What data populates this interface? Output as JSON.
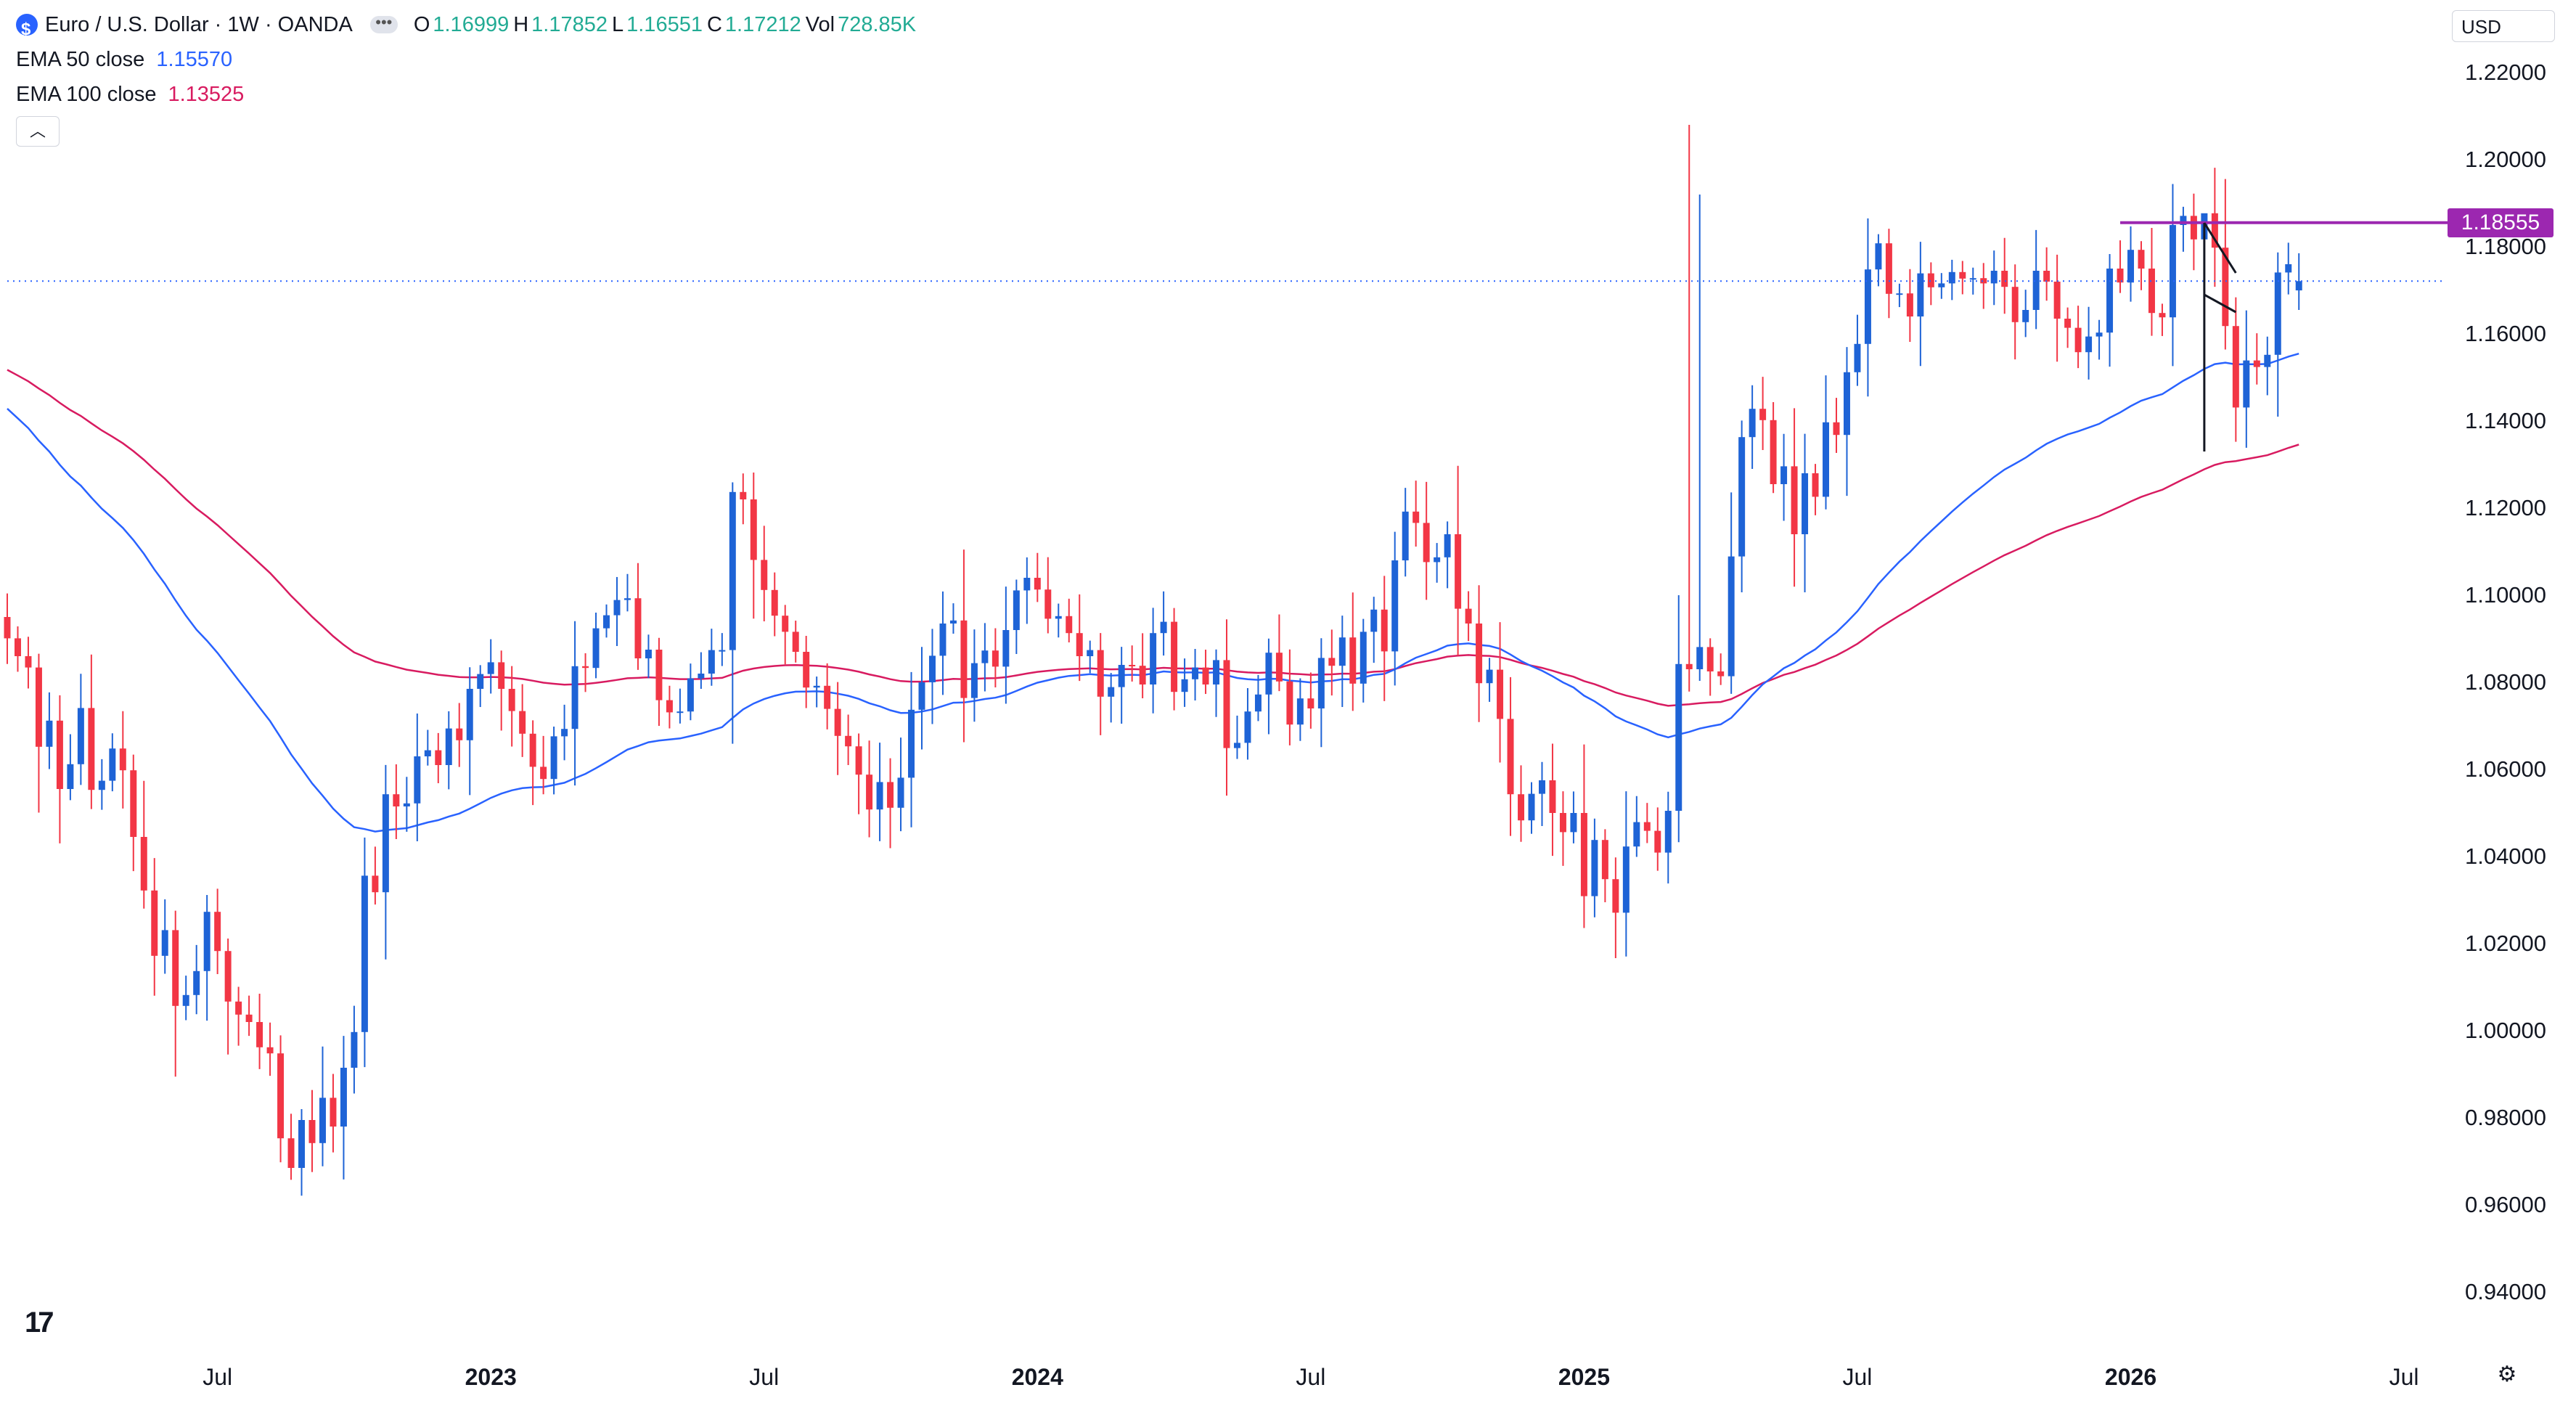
{
  "header": {
    "symbol_title": "Euro / U.S. Dollar · 1W · OANDA",
    "open_key": "O",
    "open_val": "1.16999",
    "high_key": "H",
    "high_val": "1.17852",
    "low_key": "L",
    "low_val": "1.16551",
    "close_key": "C",
    "close_val": "1.17212",
    "vol_key": "Vol",
    "vol_val": "728.85K",
    "ema50_label": "EMA 50 close",
    "ema50_val": "1.15570",
    "ema100_label": "EMA 100 close",
    "ema100_val": "1.13525",
    "collapse_icon": "chevron-up-icon"
  },
  "currency_selector": "USD",
  "price_tag": "1.18555",
  "colors": {
    "up": "#1e63d6",
    "down": "#f23645",
    "ema50": "#2962ff",
    "ema100": "#d81b60",
    "resistance": "#9c27b0",
    "current_price_line": "#2962ff",
    "axis_text": "#131722"
  },
  "chart_data": {
    "type": "candlestick",
    "title": "Euro / U.S. Dollar · 1W · OANDA",
    "ylim": [
      0.925,
      1.23
    ],
    "y_ticks": [
      "1.22000",
      "1.20000",
      "1.18000",
      "1.16000",
      "1.14000",
      "1.12000",
      "1.10000",
      "1.08000",
      "1.06000",
      "1.04000",
      "1.02000",
      "1.00000",
      "0.98000",
      "0.96000",
      "0.94000"
    ],
    "x_ticks": [
      {
        "label": "Jul",
        "index": 20
      },
      {
        "label": "2023",
        "index": 46
      },
      {
        "label": "Jul",
        "index": 72
      },
      {
        "label": "2024",
        "index": 98
      },
      {
        "label": "Jul",
        "index": 124
      },
      {
        "label": "2025",
        "index": 150
      },
      {
        "label": "Jul",
        "index": 176
      },
      {
        "label": "2026",
        "index": 202
      },
      {
        "label": "Jul",
        "index": 228
      }
    ],
    "x_range": [
      0,
      232
    ],
    "current_price": 1.17212,
    "resistance_level": 1.18555,
    "resistance_from_index": 201,
    "trend_lines": [
      {
        "from": [
          209,
          1.1855
        ],
        "to": [
          212,
          1.174
        ]
      },
      {
        "from": [
          209,
          1.169
        ],
        "to": [
          212,
          1.165
        ]
      },
      {
        "from": [
          209,
          1.1855
        ],
        "to": [
          209,
          1.133
        ]
      }
    ],
    "series": [
      {
        "kind": "ohlc",
        "closes": [
          1.0901,
          1.086,
          1.0834,
          1.0652,
          1.0712,
          1.0555,
          1.0612,
          1.0741,
          1.0553,
          1.0574,
          1.0648,
          1.0598,
          1.0445,
          1.0322,
          1.0172,
          1.0231,
          1.0057,
          1.0082,
          1.0137,
          1.0273,
          1.0183,
          1.0067,
          1.0037,
          1.002,
          0.9962,
          0.9948,
          0.9753,
          0.9685,
          0.9795,
          0.9742,
          0.9846,
          0.978,
          0.9915,
          0.9997,
          1.0356,
          1.0318,
          1.0543,
          1.0515,
          1.0522,
          1.063,
          1.0644,
          1.061,
          1.0694,
          1.0667,
          1.0785,
          1.0819,
          1.0846,
          1.0785,
          1.0734,
          1.0682,
          1.0606,
          1.0578,
          1.0676,
          1.0693,
          1.0837,
          1.0833,
          1.0924,
          1.0954,
          1.0989,
          1.0993,
          1.0855,
          1.0875,
          1.0759,
          1.0731,
          1.0733,
          1.0809,
          1.082,
          1.0874,
          1.0874,
          1.1237,
          1.122,
          1.1081,
          1.1012,
          1.0953,
          1.0916,
          1.087,
          1.0788,
          1.0792,
          1.0739,
          1.0677,
          1.0653,
          1.0588,
          1.0508,
          1.0571,
          1.0512,
          1.0581,
          1.0737,
          1.08,
          1.0861,
          1.0935,
          1.0942,
          1.0764,
          1.0844,
          1.0873,
          1.0836,
          1.092,
          1.1011,
          1.104,
          1.1013,
          1.0946,
          1.0952,
          1.0913,
          1.086,
          1.0874,
          1.0767,
          1.0789,
          1.084,
          1.0838,
          1.0795,
          1.0913,
          1.0939,
          1.0778,
          1.0807,
          1.0834,
          1.0795,
          1.0851,
          1.0649,
          1.0661,
          1.0733,
          1.0772,
          1.0868,
          1.0802,
          1.0703,
          1.0763,
          1.074,
          1.0856,
          1.0838,
          1.0903,
          1.0797,
          1.0916,
          1.0967,
          1.0871,
          1.108,
          1.1192,
          1.1166,
          1.1076,
          1.1087,
          1.114,
          1.0969,
          1.0935,
          1.0798,
          1.0829,
          1.0716,
          1.0543,
          1.0483,
          1.0544,
          1.0575,
          1.05,
          1.0456,
          1.05,
          1.0309,
          1.0438,
          1.0348,
          1.0271,
          1.0423,
          1.0479,
          1.0459,
          1.0409,
          1.0505,
          1.0842,
          1.083,
          1.0881,
          1.0825,
          1.0814,
          1.1089,
          1.1363,
          1.1428,
          1.1402,
          1.1255,
          1.1296,
          1.114,
          1.128,
          1.1226,
          1.1397,
          1.1368,
          1.1512,
          1.1577,
          1.1748,
          1.1808,
          1.1692,
          1.1693,
          1.164,
          1.1739,
          1.1707,
          1.1716,
          1.1742,
          1.1727,
          1.1728,
          1.1716,
          1.1745,
          1.1708,
          1.1627,
          1.1655,
          1.1745,
          1.172,
          1.1635,
          1.1614,
          1.1558,
          1.1594,
          1.1603,
          1.175,
          1.1718,
          1.1793,
          1.175,
          1.1648,
          1.1638,
          1.185,
          1.1871,
          1.1817,
          1.1877,
          1.1798,
          1.1618,
          1.1431,
          1.1539,
          1.1524,
          1.1552,
          1.1741,
          1.176,
          1.1721
        ]
      }
    ]
  }
}
